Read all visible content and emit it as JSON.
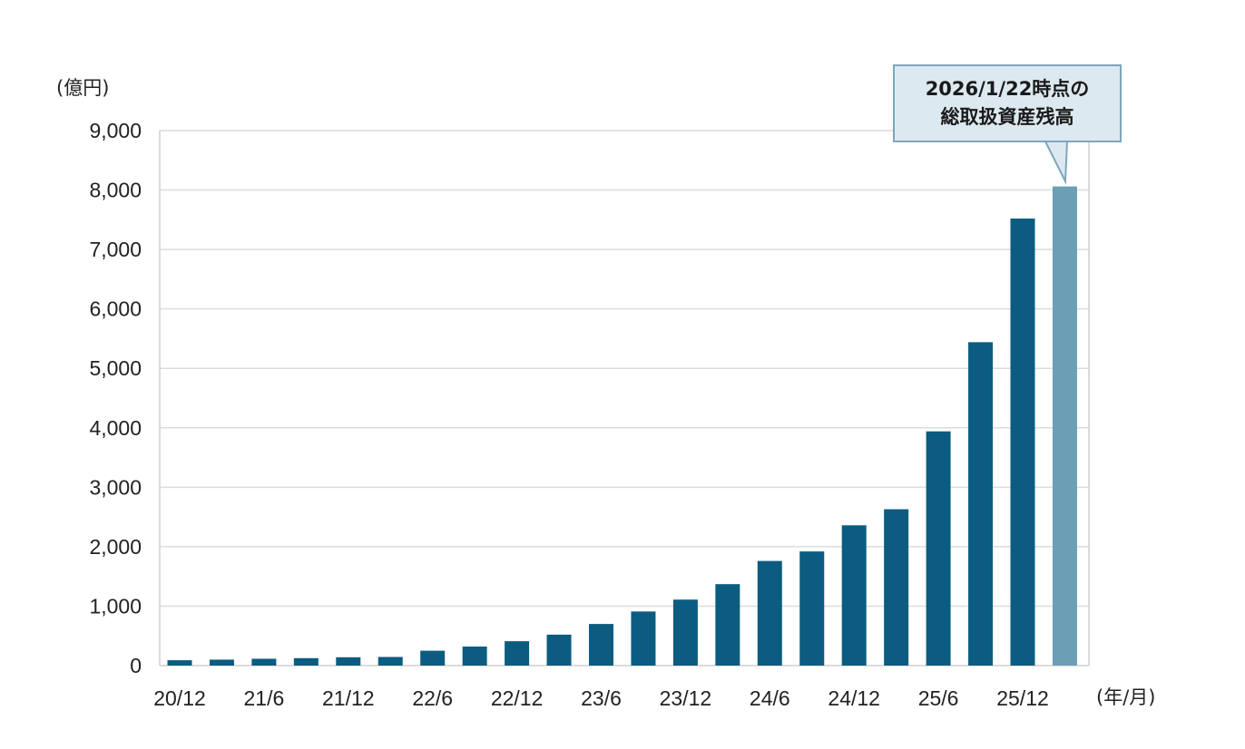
{
  "chart_data": {
    "type": "bar",
    "y_unit": "(億円)",
    "x_unit": "(年/月)",
    "ylim": [
      0,
      9000
    ],
    "y_ticks": [
      "0",
      "1,000",
      "2,000",
      "3,000",
      "4,000",
      "5,000",
      "6,000",
      "7,000",
      "8,000",
      "9,000"
    ],
    "x_tick_labels": [
      "20/12",
      "21/6",
      "21/12",
      "22/6",
      "22/12",
      "23/6",
      "23/12",
      "24/6",
      "24/12",
      "25/6",
      "25/12"
    ],
    "categories": [
      "20/12",
      "21/3",
      "21/6",
      "21/9",
      "21/12",
      "22/3",
      "22/6",
      "22/9",
      "22/12",
      "23/3",
      "23/6",
      "23/9",
      "23/12",
      "24/3",
      "24/6",
      "24/9",
      "24/12",
      "25/3",
      "25/6",
      "25/9",
      "25/12",
      "2026/1/22"
    ],
    "values": [
      90,
      100,
      115,
      125,
      140,
      145,
      250,
      320,
      410,
      520,
      700,
      910,
      1110,
      1370,
      1760,
      1920,
      2360,
      2630,
      3940,
      5440,
      7520,
      8060
    ],
    "colors": {
      "bar": "#0b5c80",
      "highlight": "#6b9fb6",
      "grid": "#dcdcdc",
      "axis": "#cfcfcf"
    },
    "annotation": {
      "line1": "2026/1/22時点の",
      "line2": "総取扱資産残高"
    }
  }
}
